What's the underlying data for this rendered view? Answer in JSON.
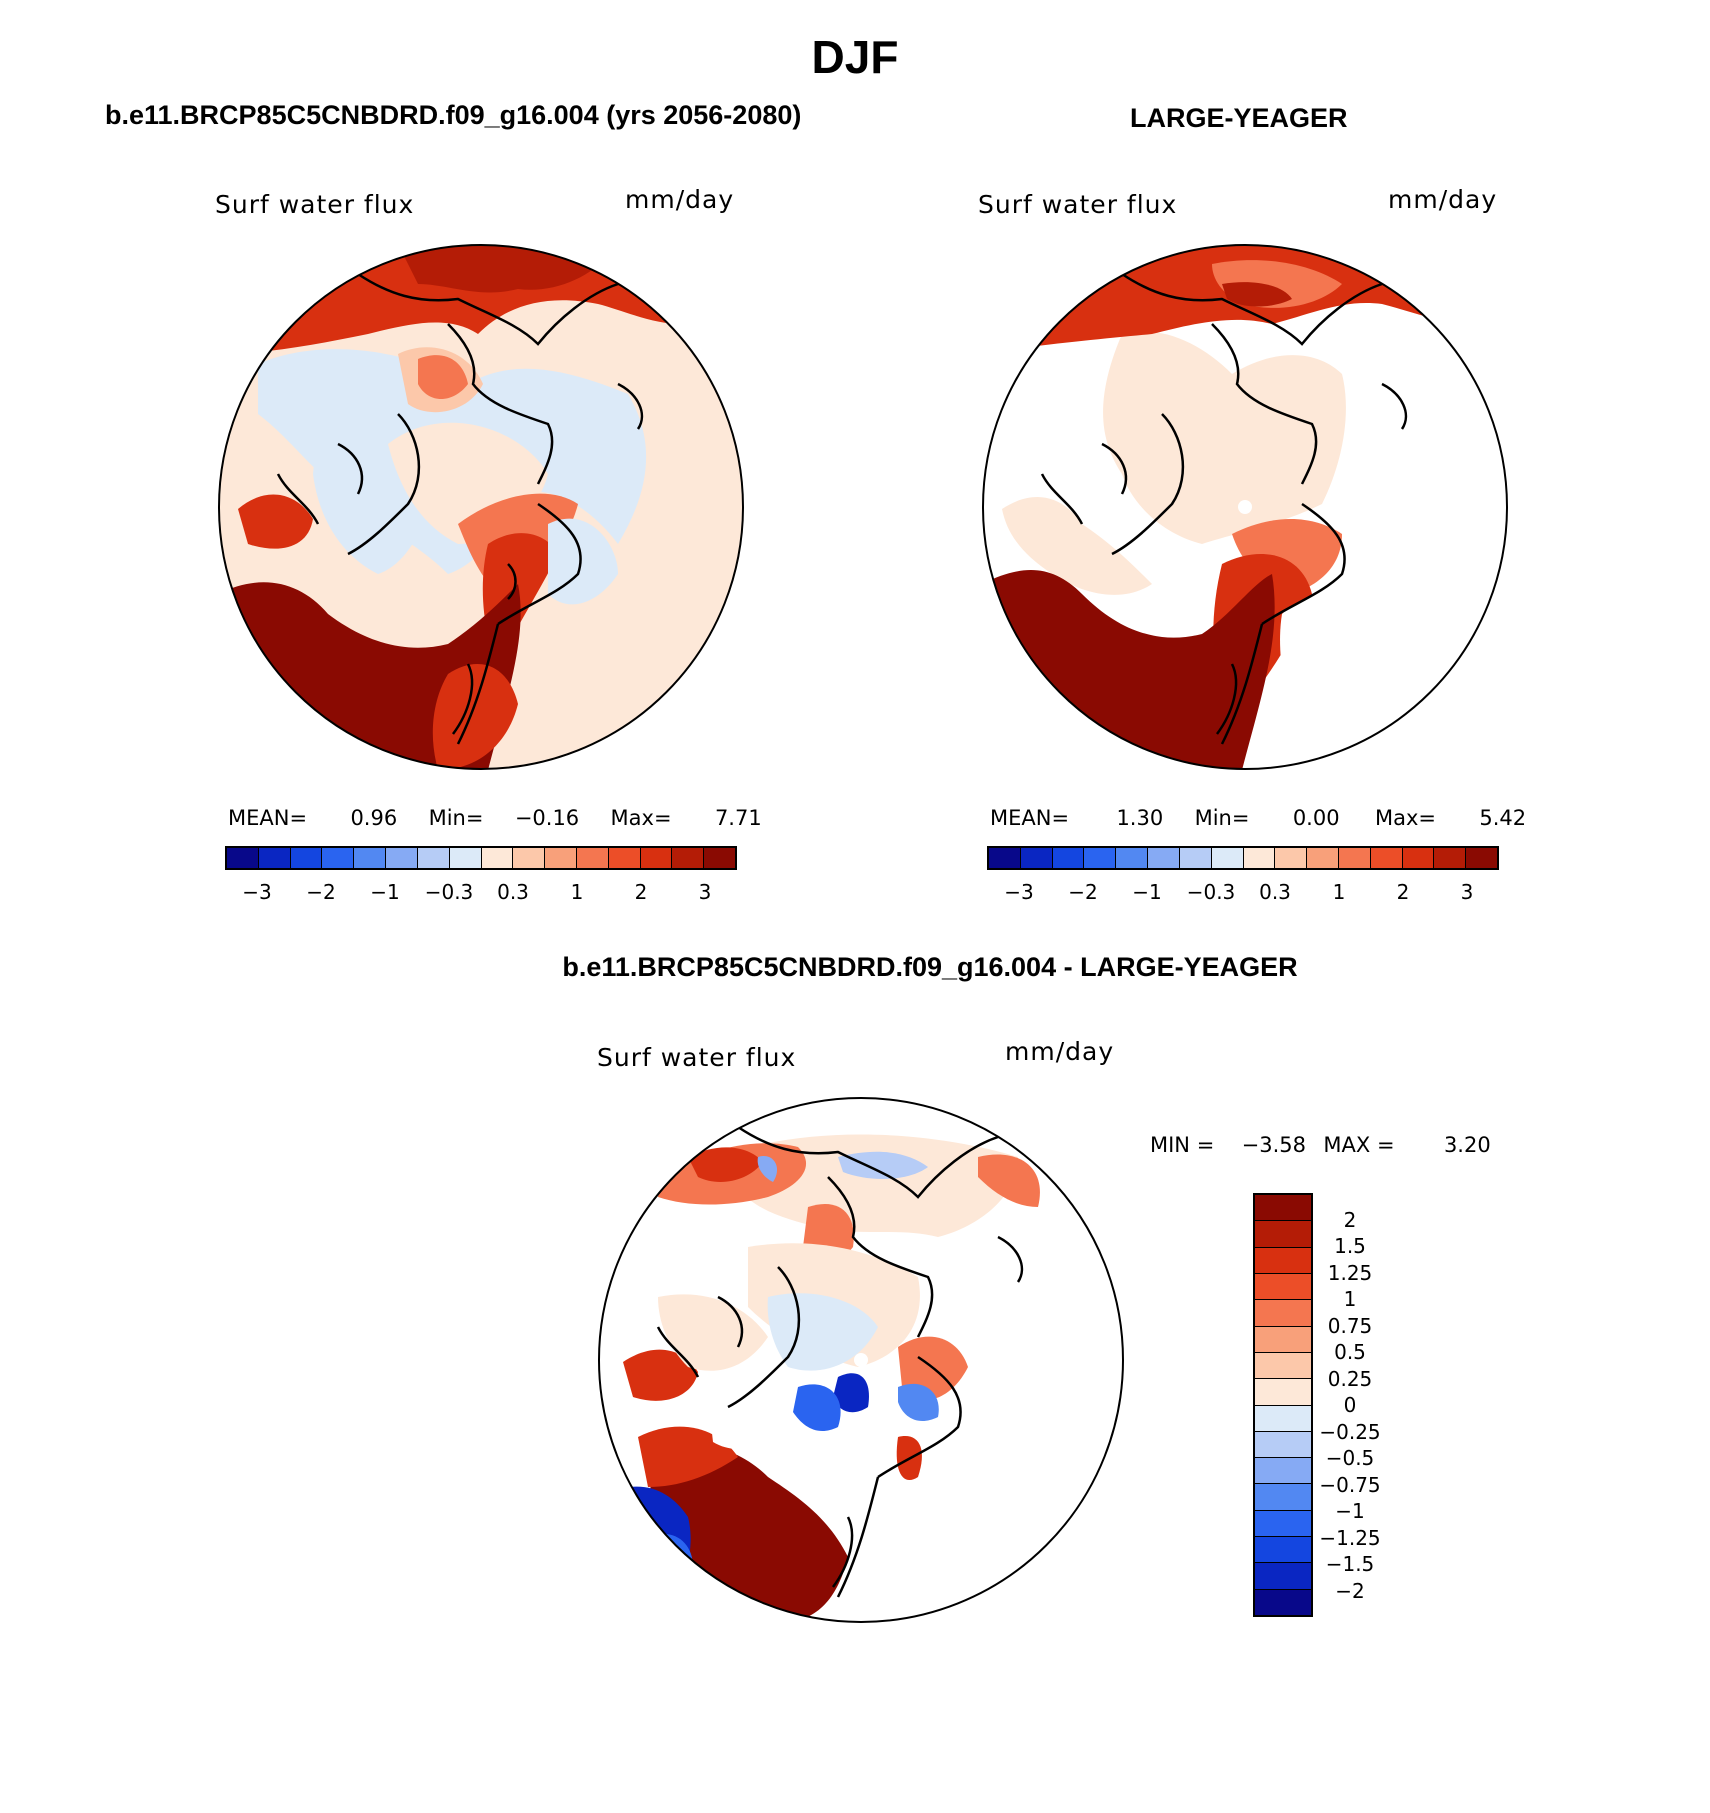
{
  "page_title": "DJF",
  "panels": {
    "top_left": {
      "title": "b.e11.BRCP85C5CNBDRD.f09_g16.004 (yrs 2056-2080)",
      "variable": "Surf water flux",
      "units": "mm/day",
      "stats": {
        "mean_label": "MEAN=",
        "mean": "0.96",
        "min_label": "Min=",
        "min": "−0.16",
        "max_label": "Max=",
        "max": "7.71"
      }
    },
    "top_right": {
      "title": "LARGE-YEAGER",
      "variable": "Surf water flux",
      "units": "mm/day",
      "stats": {
        "mean_label": "MEAN=",
        "mean": "1.30",
        "min_label": "Min=",
        "min": "0.00",
        "max_label": "Max=",
        "max": "5.42"
      }
    },
    "bottom": {
      "title": "b.e11.BRCP85C5CNBDRD.f09_g16.004 - LARGE-YEAGER",
      "variable": "Surf water flux",
      "units": "mm/day",
      "stats": {
        "min_label": "MIN =",
        "min": "−3.58",
        "max_label": "MAX =",
        "max": "3.20"
      }
    }
  },
  "colorbar_top": {
    "colors": [
      "#08088a",
      "#0a26c2",
      "#1446e0",
      "#2a64f0",
      "#5288f2",
      "#86aaf4",
      "#b6ccf6",
      "#dceaf8",
      "#fde8d8",
      "#fcc8aa",
      "#f8a07a",
      "#f47650",
      "#ec4e28",
      "#d83010",
      "#b41c06",
      "#8a0a02"
    ],
    "tick_labels": [
      "−3",
      "−2",
      "−1",
      "−0.3",
      "0.3",
      "1",
      "2",
      "3"
    ]
  },
  "colorbar_bottom": {
    "colors": [
      "#8a0a02",
      "#b41c06",
      "#d83010",
      "#ec4e28",
      "#f47650",
      "#f8a07a",
      "#fcc8aa",
      "#fde8d8",
      "#dceaf8",
      "#b6ccf6",
      "#86aaf4",
      "#5288f2",
      "#2a64f0",
      "#1446e0",
      "#0a26c2",
      "#08088a"
    ],
    "tick_labels": [
      "2",
      "1.5",
      "1.25",
      "1",
      "0.75",
      "0.5",
      "0.25",
      "0",
      "−0.25",
      "−0.5",
      "−0.75",
      "−1",
      "−1.25",
      "−1.5",
      "−2"
    ]
  },
  "map_colors": {
    "dark_red": "#8a0a02",
    "red": "#d83010",
    "orange": "#f47650",
    "salmon": "#fcc8aa",
    "light_peach": "#fde8d8",
    "light_blue": "#dceaf8",
    "blue": "#2a64f0",
    "dark_blue": "#0a26c2"
  },
  "icons": [
    "north-polar-stereographic-map"
  ]
}
